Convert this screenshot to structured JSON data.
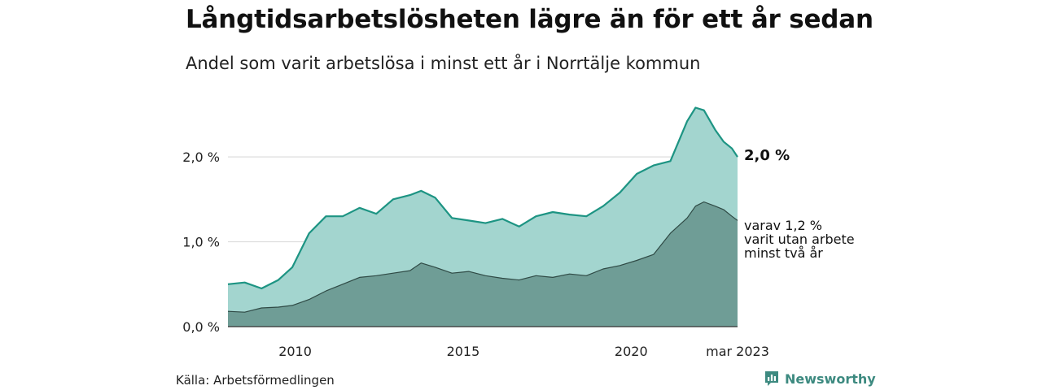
{
  "header": {
    "title": "Långtidsarbetslösheten lägre än för ett år sedan",
    "subtitle": "Andel som varit arbetslösa i minst ett år i Norrtälje kommun"
  },
  "footer": {
    "source": "Källa: Arbetsförmedlingen",
    "brand": "Newsworthy",
    "brand_icon": "newsworthy-logo-icon"
  },
  "colors": {
    "series_1_fill": "#a3d5cf",
    "series_1_line": "#1d9483",
    "series_2_fill": "#6f9d96",
    "series_2_line": "#2f4a45",
    "grid": "#dddddd",
    "brand": "#3d8a80"
  },
  "chart_data": {
    "type": "area",
    "x_start": "2008-01",
    "x_end": "2023-03",
    "x_unit": "month",
    "x_ticks": [
      {
        "x": "2010-01",
        "label": "2010"
      },
      {
        "x": "2015-01",
        "label": "2015"
      },
      {
        "x": "2020-01",
        "label": "2020"
      },
      {
        "x": "2023-03",
        "label": "mar 2023"
      }
    ],
    "y_ticks": [
      {
        "value": 0,
        "label": "0,0 %"
      },
      {
        "value": 1,
        "label": "1,0 %"
      },
      {
        "value": 2,
        "label": "2,0 %"
      }
    ],
    "ylim": [
      0,
      2.7
    ],
    "grid": true,
    "series": [
      {
        "end_label": "2,0 %",
        "x": [
          "2008-01",
          "2008-07",
          "2009-01",
          "2009-07",
          "2009-12",
          "2010-06",
          "2010-12",
          "2011-06",
          "2011-12",
          "2012-06",
          "2012-12",
          "2013-06",
          "2013-10",
          "2014-03",
          "2014-09",
          "2015-03",
          "2015-09",
          "2016-03",
          "2016-09",
          "2017-03",
          "2017-09",
          "2018-03",
          "2018-09",
          "2019-03",
          "2019-09",
          "2020-03",
          "2020-09",
          "2021-03",
          "2021-09",
          "2021-12",
          "2022-03",
          "2022-07",
          "2022-10",
          "2023-01",
          "2023-03"
        ],
        "values": [
          0.5,
          0.52,
          0.45,
          0.55,
          0.7,
          1.1,
          1.3,
          1.3,
          1.4,
          1.33,
          1.5,
          1.55,
          1.6,
          1.52,
          1.28,
          1.25,
          1.22,
          1.27,
          1.18,
          1.3,
          1.35,
          1.32,
          1.3,
          1.42,
          1.58,
          1.8,
          1.9,
          1.95,
          2.42,
          2.58,
          2.55,
          2.32,
          2.18,
          2.1,
          2.0
        ]
      },
      {
        "end_label": [
          "varav 1,2 %",
          "varit utan arbete",
          "minst två år"
        ],
        "x": [
          "2008-01",
          "2008-07",
          "2009-01",
          "2009-07",
          "2009-12",
          "2010-06",
          "2010-12",
          "2011-06",
          "2011-12",
          "2012-06",
          "2012-12",
          "2013-06",
          "2013-10",
          "2014-03",
          "2014-09",
          "2015-03",
          "2015-09",
          "2016-03",
          "2016-09",
          "2017-03",
          "2017-09",
          "2018-03",
          "2018-09",
          "2019-03",
          "2019-09",
          "2020-03",
          "2020-09",
          "2021-03",
          "2021-09",
          "2021-12",
          "2022-03",
          "2022-07",
          "2022-10",
          "2023-01",
          "2023-03"
        ],
        "values": [
          0.18,
          0.17,
          0.22,
          0.23,
          0.25,
          0.32,
          0.42,
          0.5,
          0.58,
          0.6,
          0.63,
          0.66,
          0.75,
          0.7,
          0.63,
          0.65,
          0.6,
          0.57,
          0.55,
          0.6,
          0.58,
          0.62,
          0.6,
          0.68,
          0.72,
          0.78,
          0.85,
          1.1,
          1.28,
          1.42,
          1.47,
          1.42,
          1.38,
          1.3,
          1.25
        ]
      }
    ]
  }
}
